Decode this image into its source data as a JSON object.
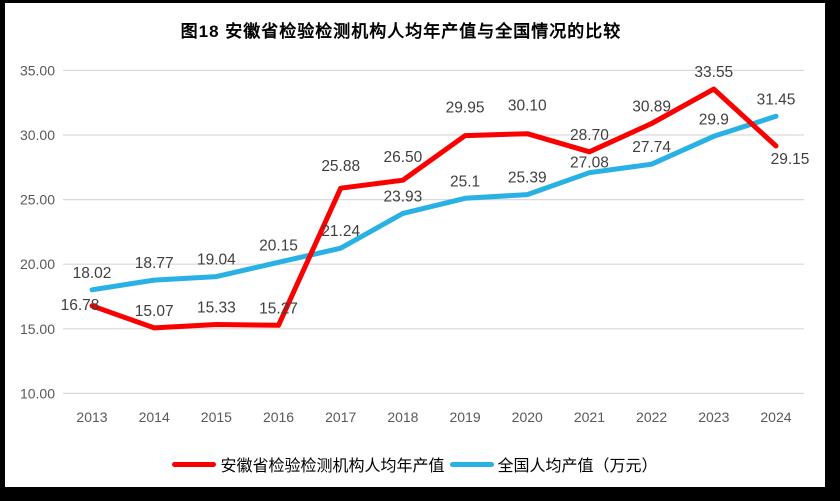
{
  "chart_data": {
    "type": "line",
    "title": "图18 安徽省检验检测机构人均年产值与全国情况的比较",
    "categories": [
      "2013",
      "2014",
      "2015",
      "2016",
      "2017",
      "2018",
      "2019",
      "2020",
      "2021",
      "2022",
      "2023",
      "2024"
    ],
    "series": [
      {
        "name": "安徽省检验检测机构人均年产值",
        "color": "#FA0000",
        "values": [
          16.78,
          15.07,
          15.33,
          15.27,
          25.88,
          26.5,
          29.95,
          30.1,
          28.7,
          30.89,
          33.55,
          29.15
        ],
        "labels": [
          "16.78",
          "15.07",
          "15.33",
          "15.27",
          "25.88",
          "26.50",
          "29.95",
          "30.10",
          "28.70",
          "30.89",
          "33.55",
          "29.15"
        ]
      },
      {
        "name": "全国人均产值（万元）",
        "color": "#29B1E6",
        "values": [
          18.02,
          18.77,
          19.04,
          20.15,
          21.24,
          23.93,
          25.1,
          25.39,
          27.08,
          27.74,
          29.9,
          31.45
        ],
        "labels": [
          "18.02",
          "18.77",
          "19.04",
          "20.15",
          "21.24",
          "23.93",
          "25.1",
          "25.39",
          "27.08",
          "27.74",
          "29.9",
          "31.45"
        ]
      }
    ],
    "y_ticks": [
      "35.00",
      "30.00",
      "25.00",
      "20.00",
      "15.00",
      "10.00"
    ],
    "ylim": [
      10,
      35
    ],
    "grid": true,
    "legend_position": "bottom",
    "colors": {
      "grid": "#D9D9D9",
      "axis_text": "#595959",
      "data_label_text": "#3F3F3F",
      "canvas_bg": "#FFFFFF",
      "frame_bg": "#000000"
    }
  }
}
